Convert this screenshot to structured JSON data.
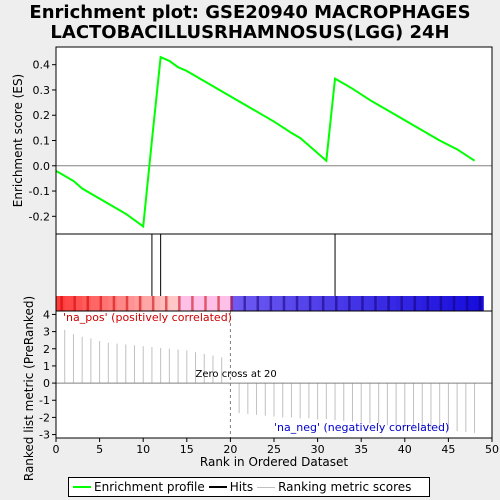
{
  "figure": {
    "title_line1": "Enrichment plot: GSE20940 MACROPHAGES",
    "title_line2": "LACTOBACILLUSRHAMNOSUS(LGG) 24H",
    "colors": {
      "enrichment_line": "#00ff00",
      "hits": "#000000",
      "ranking_metric": "#c0c0c0",
      "zero_line": "#808080",
      "pos_label": "#cc0000",
      "neg_label": "#0000cc",
      "background": "#eeeeee",
      "panel": "#ffffff"
    }
  },
  "legend": {
    "items": [
      {
        "label": "Enrichment profile",
        "color": "#00ff00"
      },
      {
        "label": "Hits",
        "color": "#000000"
      },
      {
        "label": "Ranking metric scores",
        "color": "#c0c0c0"
      }
    ]
  },
  "chart_data": [
    {
      "type": "line",
      "panel": "enrichment-score",
      "ylabel": "Enrichment score (ES)",
      "xlim": [
        0,
        50
      ],
      "ylim": [
        -0.27,
        0.47
      ],
      "yticks": [
        -0.2,
        -0.1,
        0.0,
        0.1,
        0.2,
        0.3,
        0.4
      ],
      "ytick_labels": [
        "-0.2",
        "-0.1",
        "0.0",
        "0.1",
        "0.2",
        "0.3",
        "0.4"
      ],
      "series": [
        {
          "x": [
            0,
            2,
            3,
            5,
            7,
            8,
            9,
            10,
            11,
            12,
            13,
            14,
            15,
            17,
            19,
            21,
            23,
            25,
            27,
            28,
            29,
            30,
            31,
            32,
            33,
            34,
            36,
            38,
            40,
            42,
            44,
            46,
            48
          ],
          "y": [
            -0.02,
            -0.06,
            -0.09,
            -0.13,
            -0.17,
            -0.19,
            -0.215,
            -0.24,
            0.1,
            0.43,
            0.415,
            0.39,
            0.375,
            0.335,
            0.295,
            0.255,
            0.215,
            0.175,
            0.13,
            0.11,
            0.08,
            0.05,
            0.02,
            0.345,
            0.325,
            0.305,
            0.26,
            0.22,
            0.18,
            0.14,
            0.1,
            0.065,
            0.02
          ]
        }
      ]
    },
    {
      "type": "hits",
      "panel": "hits",
      "x": [
        11,
        12,
        32
      ]
    },
    {
      "type": "bar",
      "panel": "ranked-list-metric",
      "ylabel": "Ranked list metric (PreRanked)",
      "xlabel": "Rank in Ordered Dataset",
      "xlim": [
        0,
        50
      ],
      "ylim": [
        -3.2,
        4.2
      ],
      "xticks": [
        0,
        5,
        10,
        15,
        20,
        25,
        30,
        35,
        40,
        45,
        50
      ],
      "yticks": [
        -3,
        -2,
        -1,
        0,
        1,
        2,
        3,
        4
      ],
      "x": [
        1,
        2,
        3,
        4,
        5,
        6,
        7,
        8,
        9,
        10,
        11,
        12,
        13,
        14,
        15,
        16,
        17,
        18,
        19,
        21,
        22,
        23,
        24,
        25,
        26,
        27,
        28,
        29,
        30,
        31,
        32,
        33,
        34,
        35,
        36,
        37,
        38,
        39,
        40,
        41,
        42,
        43,
        44,
        45,
        46,
        47,
        48
      ],
      "values": [
        3.1,
        2.85,
        2.7,
        2.6,
        2.45,
        2.35,
        2.3,
        2.25,
        2.2,
        2.15,
        2.1,
        2.05,
        2.0,
        1.95,
        1.9,
        1.8,
        1.7,
        1.6,
        1.5,
        -1.75,
        -1.8,
        -1.85,
        -1.9,
        -1.95,
        -2.0,
        -2.0,
        -2.05,
        -2.05,
        -2.1,
        -2.1,
        -2.15,
        -2.2,
        -2.25,
        -2.3,
        -2.35,
        -2.4,
        -2.45,
        -2.5,
        -2.55,
        -2.6,
        -2.65,
        -2.7,
        -2.75,
        -2.75,
        -2.8,
        -2.85,
        -2.9
      ],
      "annotations": {
        "pos": "'na_pos' (positively correlated)",
        "neg": "'na_neg' (negatively correlated)",
        "zero_cross": "Zero cross at 20",
        "zero_cross_x": 20
      }
    }
  ]
}
